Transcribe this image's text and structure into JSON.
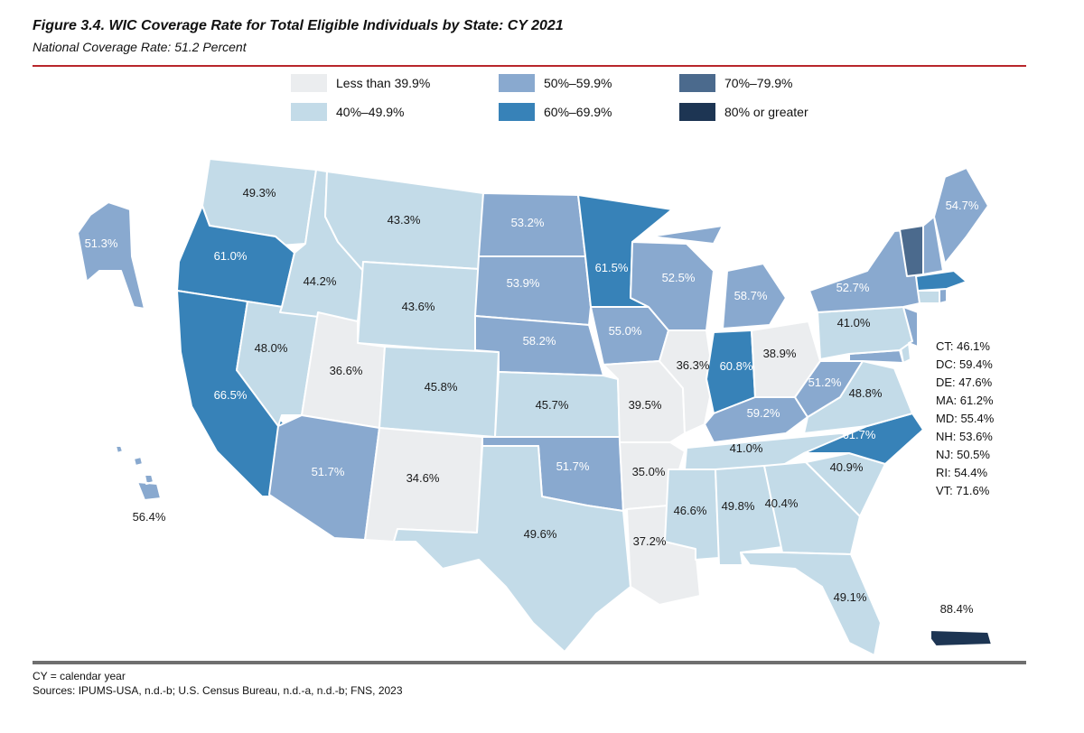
{
  "title": "Figure 3.4. WIC Coverage Rate for Total Eligible Individuals by State: CY 2021",
  "subtitle": "National Coverage Rate: 51.2 Percent",
  "colors": {
    "lt40": "#ebedef",
    "40s": "#c3dbe8",
    "50s": "#89a9cf",
    "60s": "#3782b8",
    "70s": "#4b6a8d",
    "80plus": "#1d3553"
  },
  "legend": {
    "lt40": "Less than 39.9%",
    "40s": "40%–49.9%",
    "50s": "50%–59.9%",
    "60s": "60%–69.9%",
    "70s": "70%–79.9%",
    "80plus": "80% or greater"
  },
  "states": {
    "WA": "49.3%",
    "OR": "61.0%",
    "CA": "66.5%",
    "ID": "44.2%",
    "NV": "48.0%",
    "MT": "43.3%",
    "WY": "43.6%",
    "UT": "36.6%",
    "CO": "45.8%",
    "AZ": "51.7%",
    "NM": "34.6%",
    "ND": "53.2%",
    "SD": "53.9%",
    "NE": "58.2%",
    "KS": "45.7%",
    "OK": "51.7%",
    "TX": "49.6%",
    "MN": "61.5%",
    "IA": "55.0%",
    "MO": "39.5%",
    "AR": "35.0%",
    "LA": "37.2%",
    "WI": "52.5%",
    "IL": "36.3%",
    "MI": "58.7%",
    "IN": "60.8%",
    "OH": "38.9%",
    "KY": "59.2%",
    "TN": "41.0%",
    "MS": "46.6%",
    "AL": "49.8%",
    "GA": "40.4%",
    "FL": "49.1%",
    "SC": "40.9%",
    "NC": "61.7%",
    "VA": "48.8%",
    "WV": "51.2%",
    "PA": "41.0%",
    "NY": "52.7%",
    "ME": "54.7%",
    "AK": "51.3%",
    "HI": "56.4%",
    "PR": "88.4%"
  },
  "small_states": [
    "CT: 46.1%",
    "DC: 59.4%",
    "DE: 47.6%",
    "MA: 61.2%",
    "MD: 55.4%",
    "NH: 53.6%",
    "NJ: 50.5%",
    "RI: 54.4%",
    "VT: 71.6%"
  ],
  "footnotes": {
    "abbr": "CY = calendar year",
    "sources": "Sources: IPUMS-USA, n.d.-b; U.S. Census Bureau, n.d.-a, n.d.-b; FNS, 2023"
  }
}
